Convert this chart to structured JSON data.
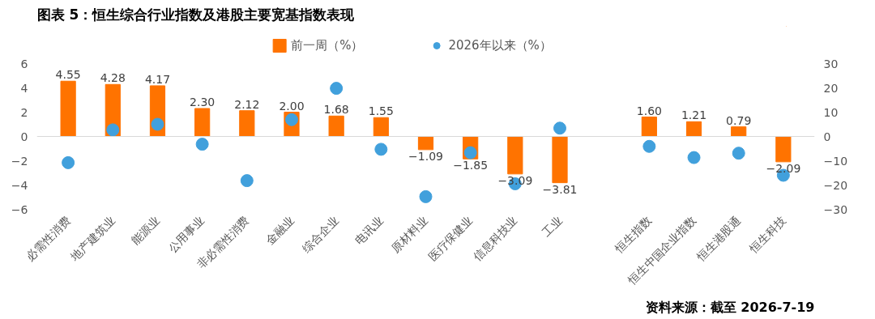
{
  "chart_data": {
    "type": "bar",
    "title": "图表 5：恒生综合行业指数及港股主要宽基指数表现",
    "categories": [
      "必需性消费",
      "地产建筑业",
      "能源业",
      "公用事业",
      "非必需性消费",
      "金融业",
      "综合企业",
      "电讯业",
      "原材料业",
      "医疗保健业",
      "信息科技业",
      "工业",
      null,
      "恒生指数",
      "恒生中国企业指数",
      "恒生港股通",
      "恒生科技"
    ],
    "series": [
      {
        "name": "前一周（%）",
        "color": "#ff7300",
        "values": [
          4.55,
          4.28,
          4.17,
          2.3,
          2.12,
          2.0,
          1.68,
          1.55,
          -1.09,
          -1.85,
          -3.09,
          -3.81,
          null,
          1.6,
          1.21,
          0.79,
          -2.09
        ],
        "value_labels": [
          "4.55",
          "4.28",
          "4.17",
          "2.30",
          "2.12",
          "2.00",
          "1.68",
          "1.55",
          "−1.09",
          "−1.85",
          "−3.09",
          "−3.81",
          null,
          "1.60",
          "1.21",
          "0.79",
          "−2.09"
        ]
      },
      {
        "name": "2026年以来（%）",
        "type": "scatter",
        "axis": "y2",
        "color": "#41a0dc",
        "values": [
          -10.8,
          2.7,
          5.0,
          -3.2,
          -18.2,
          6.9,
          19.8,
          -5.3,
          -24.8,
          -6.7,
          -19.5,
          3.4,
          null,
          -4.1,
          -8.7,
          -6.9,
          -16.0
        ]
      }
    ],
    "ylim": [
      -6,
      6
    ],
    "yticks": [
      {
        "value": -6,
        "label": "−6"
      },
      {
        "value": -4,
        "label": "−4"
      },
      {
        "value": -2,
        "label": "−2"
      },
      0,
      2,
      4,
      6
    ],
    "y2lim": [
      -30,
      30
    ],
    "y2ticks": [
      {
        "value": -30,
        "label": "−30"
      },
      {
        "value": -20,
        "label": "−20"
      },
      {
        "value": -10,
        "label": "−10"
      },
      0,
      10,
      20,
      30
    ],
    "legend": "top",
    "ref_lines": [
      {
        "axis": "y",
        "value": 0,
        "color": "#d9d9d9"
      }
    ],
    "grid": false,
    "marker": "circle",
    "annotations": [
      "资料来源：截至 2026-7-19"
    ]
  }
}
